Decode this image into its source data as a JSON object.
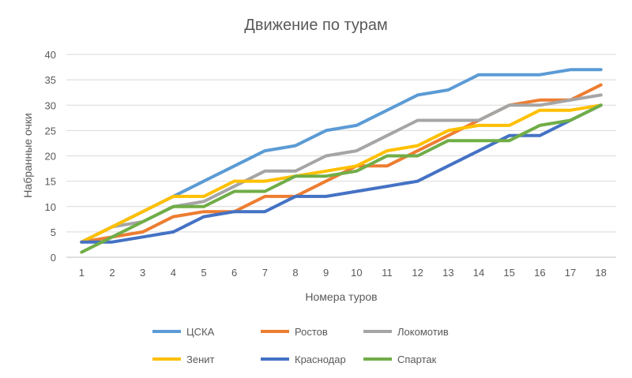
{
  "chart_data": {
    "type": "line",
    "title": "Движение по турам",
    "xlabel": "Номера туров",
    "ylabel": "Набранные очки",
    "ylim": [
      0,
      40
    ],
    "y_ticks": [
      "0",
      "5",
      "10",
      "15",
      "20",
      "25",
      "30",
      "35",
      "40"
    ],
    "categories": [
      "1",
      "2",
      "3",
      "4",
      "5",
      "6",
      "7",
      "8",
      "9",
      "10",
      "11",
      "12",
      "13",
      "14",
      "15",
      "16",
      "17",
      "18"
    ],
    "grid": true,
    "legend_position": "bottom",
    "series": [
      {
        "name": "ЦСКА",
        "color": "#5B9BD5",
        "values": [
          3,
          6,
          9,
          12,
          15,
          18,
          21,
          22,
          25,
          26,
          29,
          32,
          33,
          36,
          36,
          36,
          37,
          37
        ]
      },
      {
        "name": "Ростов",
        "color": "#ED7D31",
        "values": [
          3,
          4,
          5,
          8,
          9,
          9,
          12,
          12,
          15,
          18,
          18,
          21,
          24,
          27,
          30,
          31,
          31,
          34
        ]
      },
      {
        "name": "Локомотив",
        "color": "#A5A5A5",
        "values": [
          3,
          6,
          7,
          10,
          11,
          14,
          17,
          17,
          20,
          21,
          24,
          27,
          27,
          27,
          30,
          30,
          31,
          32
        ]
      },
      {
        "name": "Зенит",
        "color": "#FFC000",
        "values": [
          3,
          6,
          9,
          12,
          12,
          15,
          15,
          16,
          17,
          18,
          21,
          22,
          25,
          26,
          26,
          29,
          29,
          30
        ]
      },
      {
        "name": "Краснодар",
        "color": "#4472C4",
        "values": [
          3,
          3,
          4,
          5,
          8,
          9,
          9,
          12,
          12,
          13,
          14,
          15,
          18,
          21,
          24,
          24,
          27,
          30
        ]
      },
      {
        "name": "Спартак",
        "color": "#70AD47",
        "values": [
          1,
          4,
          7,
          10,
          10,
          13,
          13,
          16,
          16,
          17,
          20,
          20,
          23,
          23,
          23,
          26,
          27,
          30
        ]
      }
    ]
  }
}
